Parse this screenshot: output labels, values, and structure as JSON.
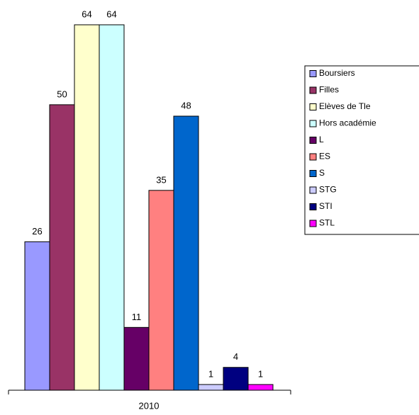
{
  "chart_data": {
    "type": "bar",
    "categories": [
      "2010"
    ],
    "series": [
      {
        "name": "Boursiers",
        "color": "#9999ff",
        "values": [
          26
        ]
      },
      {
        "name": "Filles",
        "color": "#993366",
        "values": [
          50
        ]
      },
      {
        "name": "Elèves de Tle",
        "color": "#ffffcc",
        "values": [
          64
        ]
      },
      {
        "name": "Hors académie",
        "color": "#ccffff",
        "values": [
          64
        ]
      },
      {
        "name": "L",
        "color": "#660066",
        "values": [
          11
        ]
      },
      {
        "name": "ES",
        "color": "#ff8080",
        "values": [
          35
        ]
      },
      {
        "name": "S",
        "color": "#0066cc",
        "values": [
          48
        ]
      },
      {
        "name": "STG",
        "color": "#ccccff",
        "values": [
          1
        ]
      },
      {
        "name": "STI",
        "color": "#000080",
        "values": [
          4
        ]
      },
      {
        "name": "STL",
        "color": "#ff00ff",
        "values": [
          1
        ]
      }
    ]
  }
}
